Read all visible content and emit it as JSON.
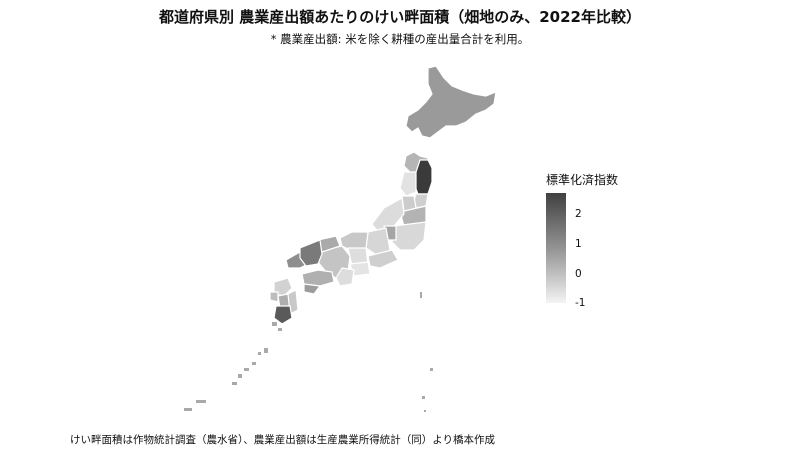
{
  "title": "都道府県別 農業産出額あたりのけい畔面積（畑地のみ、2022年比較）",
  "subtitle": "* 農業産出額: 米を除く耕種の産出量合計を利用。",
  "legend": {
    "title": "標準化済指数",
    "ticks": [
      "2",
      "1",
      "0",
      "-1"
    ],
    "colors": {
      "high": "#404040",
      "low": "#f4f4f4"
    }
  },
  "map": {
    "type": "choropleth",
    "region": "Japan prefectures",
    "border_color": "#ffffff",
    "regions": [
      {
        "id": "hokkaido",
        "shade": "#9a9a9a"
      },
      {
        "id": "aomori",
        "shade": "#b5b5b5"
      },
      {
        "id": "iwate",
        "shade": "#3a3a3a"
      },
      {
        "id": "akita",
        "shade": "#e2e2e2"
      },
      {
        "id": "miyagi",
        "shade": "#cfcfcf"
      },
      {
        "id": "yamagata",
        "shade": "#cccccc"
      },
      {
        "id": "fukushima",
        "shade": "#b3b3b3"
      },
      {
        "id": "niigata",
        "shade": "#dcdcdc"
      },
      {
        "id": "kanto",
        "shade": "#d8d8d8"
      },
      {
        "id": "gunma",
        "shade": "#a5a5a5"
      },
      {
        "id": "nagano",
        "shade": "#d6d6d6"
      },
      {
        "id": "hokuriku",
        "shade": "#c8c8c8"
      },
      {
        "id": "gifu",
        "shade": "#dedede"
      },
      {
        "id": "shizuoka",
        "shade": "#cfcfcf"
      },
      {
        "id": "aichi",
        "shade": "#e4e4e4"
      },
      {
        "id": "kinki",
        "shade": "#c4c4c4"
      },
      {
        "id": "kinki-north",
        "shade": "#aaaaaa"
      },
      {
        "id": "mie",
        "shade": "#dddddd"
      },
      {
        "id": "chugoku-west",
        "shade": "#8e8e8e"
      },
      {
        "id": "chugoku-east",
        "shade": "#7a7a7a"
      },
      {
        "id": "shikoku",
        "shade": "#b0b0b0"
      },
      {
        "id": "kochi",
        "shade": "#9c9c9c"
      },
      {
        "id": "kyushu-north",
        "shade": "#d2d2d2"
      },
      {
        "id": "nagasaki",
        "shade": "#bdbdbd"
      },
      {
        "id": "kumamoto",
        "shade": "#adadad"
      },
      {
        "id": "miyazaki",
        "shade": "#c9c9c9"
      },
      {
        "id": "kagoshima",
        "shade": "#5a5a5a"
      }
    ]
  },
  "caption": "けい畔面積は作物統計調査（農水省）、農業産出額は生産農業所得統計（同）より橋本作成"
}
